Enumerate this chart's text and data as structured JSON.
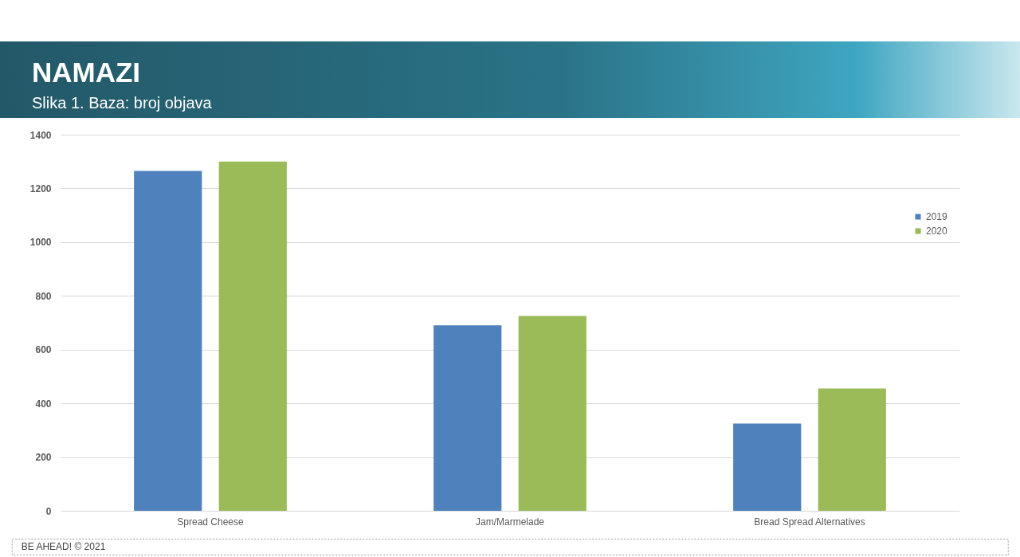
{
  "chart_data": {
    "type": "bar",
    "title": "NAMAZI",
    "subtitle": "Slika 1. Baza: broj objava",
    "annotations": [
      "BE AHEAD! © 2021"
    ],
    "categories": [
      "Spread Cheese",
      "Jam/Marmelade",
      "Bread Spread Alternatives"
    ],
    "series": [
      {
        "name": "2019",
        "color": "#4f81bd",
        "values": [
          1265,
          690,
          325
        ]
      },
      {
        "name": "2020",
        "color": "#9bbb59",
        "values": [
          1300,
          725,
          455
        ]
      }
    ],
    "ylim": [
      0,
      1400
    ],
    "yticks": [
      0,
      200,
      400,
      600,
      800,
      1000,
      1200,
      1400
    ],
    "grid": "y",
    "legend": "right"
  }
}
